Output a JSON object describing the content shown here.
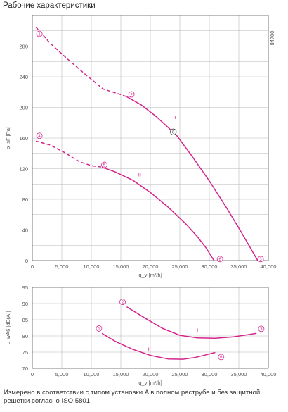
{
  "page_title": "Рабочие характеристики",
  "footnote": "Измерено в соответствии с типом установки A в полном раструбе и без защитной решетки согласно ISO 5801.",
  "colors": {
    "curve": "#d4238c",
    "grid": "#b7b7b7",
    "axis": "#555555"
  },
  "chart_data": [
    {
      "type": "line",
      "id_label": "84700",
      "xlabel": "q_v [m³/h]",
      "ylabel": "p_sF [Pa]",
      "xlim": [
        0,
        40000
      ],
      "ylim": [
        0,
        320
      ],
      "x_ticks": [
        "0",
        "5,000",
        "10,000",
        "15,000",
        "20,000",
        "25,000",
        "30,000",
        "35,000",
        "40,000"
      ],
      "y_ticks": [
        "0",
        "40",
        "80",
        "120",
        "160",
        "200",
        "240",
        "280"
      ],
      "operating_point": {
        "label": "8",
        "x": 23900,
        "y": 168
      },
      "series": [
        {
          "name": "I",
          "label_at": [
            24200,
            185
          ],
          "style": "dashed",
          "x": [
            600,
            3000,
            6000,
            9000,
            12000,
            14500,
            16000
          ],
          "y": [
            305,
            284,
            263,
            243,
            224,
            218,
            214
          ]
        },
        {
          "name": "I",
          "style": "solid",
          "x": [
            16000,
            18500,
            21000,
            23000,
            24500,
            27000,
            30000,
            33000,
            35500,
            37000,
            38200
          ],
          "y": [
            214,
            203,
            188,
            174,
            163,
            137,
            104,
            68,
            36,
            16,
            0
          ]
        },
        {
          "name": "II",
          "label_at": [
            18200,
            110
          ],
          "style": "dashed",
          "x": [
            600,
            3000,
            5500,
            8000,
            10000,
            11800
          ],
          "y": [
            156,
            151,
            141,
            129,
            124,
            122
          ]
        },
        {
          "name": "II",
          "style": "solid",
          "x": [
            11800,
            14000,
            17000,
            20000,
            23000,
            26000,
            28000,
            29500,
            30800
          ],
          "y": [
            122,
            116,
            105,
            89,
            70,
            48,
            31,
            16,
            0
          ]
        }
      ],
      "point_markers": [
        {
          "label": "1",
          "x": 1200,
          "y": 296
        },
        {
          "label": "2",
          "x": 16800,
          "y": 217
        },
        {
          "label": "3",
          "x": 38700,
          "y": 2
        },
        {
          "label": "4",
          "x": 1200,
          "y": 163
        },
        {
          "label": "5",
          "x": 12200,
          "y": 125
        },
        {
          "label": "6",
          "x": 31800,
          "y": 2
        }
      ]
    },
    {
      "type": "line",
      "xlabel": "q_v [m³/h]",
      "ylabel": "L_wA6 [dB(A)]",
      "xlim": [
        0,
        40000
      ],
      "ylim": [
        70,
        95
      ],
      "x_ticks": [
        "0",
        "5,000",
        "10,000",
        "15,000",
        "20,000",
        "25,000",
        "30,000",
        "35,000",
        "40,000"
      ],
      "y_ticks": [
        "70",
        "75",
        "80",
        "85",
        "90",
        "95"
      ],
      "series": [
        {
          "name": "I",
          "label_at": [
            28000,
            81.2
          ],
          "style": "solid",
          "x": [
            16000,
            19000,
            22000,
            25000,
            28000,
            31000,
            34000,
            36500,
            38000
          ],
          "y": [
            89,
            85.6,
            82.4,
            80.2,
            79.4,
            79.3,
            79.7,
            80.4,
            80.8
          ]
        },
        {
          "name": "II",
          "label_at": [
            19800,
            75.3
          ],
          "style": "solid",
          "x": [
            11800,
            14000,
            17000,
            20000,
            23000,
            25500,
            27500,
            29500,
            31000
          ],
          "y": [
            80.8,
            78.4,
            75.9,
            74.0,
            72.9,
            72.8,
            73.3,
            74.2,
            74.9
          ]
        }
      ],
      "point_markers": [
        {
          "label": "2",
          "x": 15300,
          "y": 90.5
        },
        {
          "label": "3",
          "x": 38800,
          "y": 82.2
        },
        {
          "label": "5",
          "x": 11300,
          "y": 82.3
        },
        {
          "label": "6",
          "x": 32000,
          "y": 73.5
        }
      ]
    }
  ]
}
